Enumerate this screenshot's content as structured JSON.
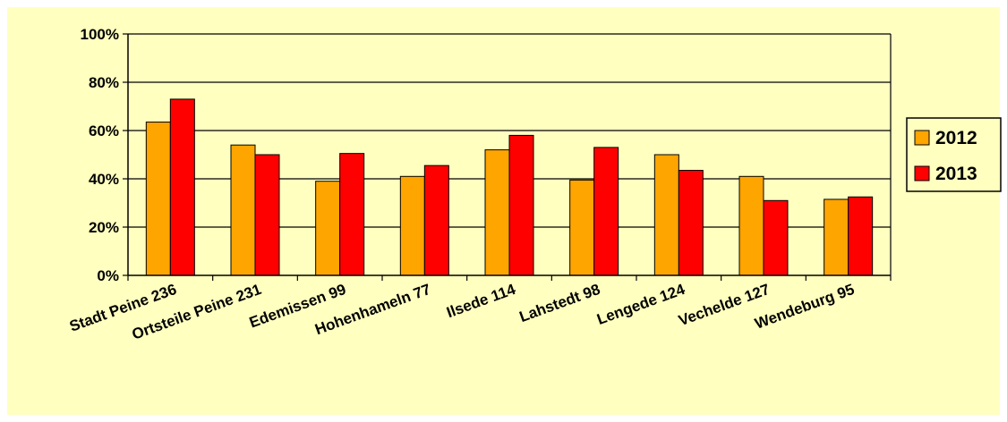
{
  "chart_data": {
    "type": "bar",
    "title": "",
    "xlabel": "",
    "ylabel": "",
    "categories": [
      "Stadt Peine 236",
      "Ortsteile Peine 231",
      "Edemissen 99",
      "Hohenhameln 77",
      "Ilsede 114",
      "Lahstedt 98",
      "Lengede 124",
      "Vechelde 127",
      "Wendeburg 95"
    ],
    "series": [
      {
        "name": "2012",
        "color": "#FFA500",
        "values": [
          63.5,
          54,
          39,
          41,
          52,
          39.5,
          50,
          41,
          31.5
        ]
      },
      {
        "name": "2013",
        "color": "#FF0000",
        "values": [
          73,
          50,
          50.5,
          45.5,
          58,
          53,
          43.5,
          31,
          32.5
        ]
      }
    ],
    "ylim": [
      0,
      100
    ],
    "yticks": [
      0,
      20,
      40,
      60,
      80,
      100
    ],
    "ytick_labels": [
      "0%",
      "20%",
      "40%",
      "60%",
      "80%",
      "100%"
    ],
    "grid": true,
    "legend_position": "right",
    "background_color": "#FFFFC0"
  }
}
